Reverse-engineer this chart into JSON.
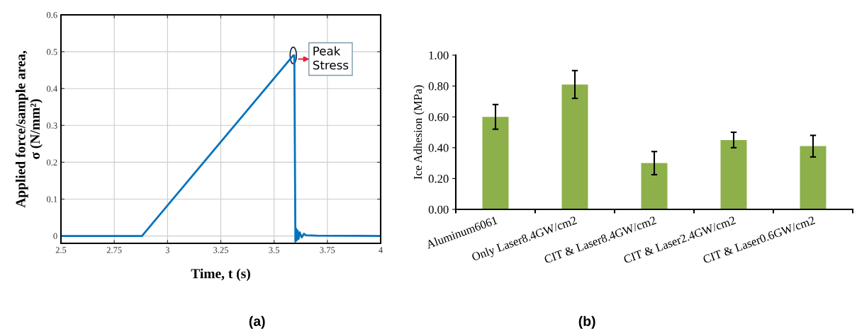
{
  "chart_data": [
    {
      "type": "line",
      "xlabel": "Time, t (s)",
      "ylabel": "Applied force/sample area,\nσ (N/mm²)",
      "series": [
        {
          "color": "#0072bd",
          "x": [
            2.5,
            2.88,
            3.59,
            3.595,
            3.6,
            3.603,
            3.606,
            3.61,
            3.615,
            3.62,
            3.63,
            3.64,
            3.65,
            3.7,
            4.0
          ],
          "values": [
            0,
            0,
            0.49,
            0.49,
            -0.015,
            0.02,
            -0.012,
            0.015,
            -0.008,
            0.01,
            -0.004,
            0.006,
            0.002,
            0.001,
            0
          ]
        }
      ],
      "xlim": [
        2.5,
        4
      ],
      "xticks": [
        2.5,
        2.75,
        3,
        3.25,
        3.5,
        3.75,
        4
      ],
      "ylim": [
        -0.02,
        0.6
      ],
      "yticks": [
        0,
        0.1,
        0.2,
        0.3,
        0.4,
        0.5,
        0.6
      ],
      "grid": true,
      "line_style": "solid",
      "annotations": [
        {
          "text": "Peak\nStress",
          "x": 3.59,
          "y": 0.49
        },
        "(a)"
      ]
    },
    {
      "type": "bar",
      "ylabel": "Ice Adhesion (MPa)",
      "categories": [
        "Aluminum6061",
        "Only Laser8.4GW/cm2",
        "CIT & Laser8.4GW/cm2",
        "CIT & Laser2.4GW/cm2",
        "CIT & Laser0.6GW/cm2"
      ],
      "values": [
        0.6,
        0.81,
        0.3,
        0.45,
        0.41
      ],
      "color": "#8db04a",
      "errors": [
        0.08,
        0.09,
        0.075,
        0.05,
        0.07
      ],
      "ylim": [
        0,
        1.0
      ],
      "yticks": [
        {
          "value": 0,
          "label": "0.00"
        },
        {
          "value": 0.2,
          "label": "0.20"
        },
        {
          "value": 0.4,
          "label": "0.40"
        },
        {
          "value": 0.6,
          "label": "0.60"
        },
        {
          "value": 0.8,
          "label": "0.80"
        },
        {
          "value": 1.0,
          "label": "1.00"
        }
      ],
      "grid": false,
      "annotations": [
        "(b)"
      ]
    }
  ]
}
